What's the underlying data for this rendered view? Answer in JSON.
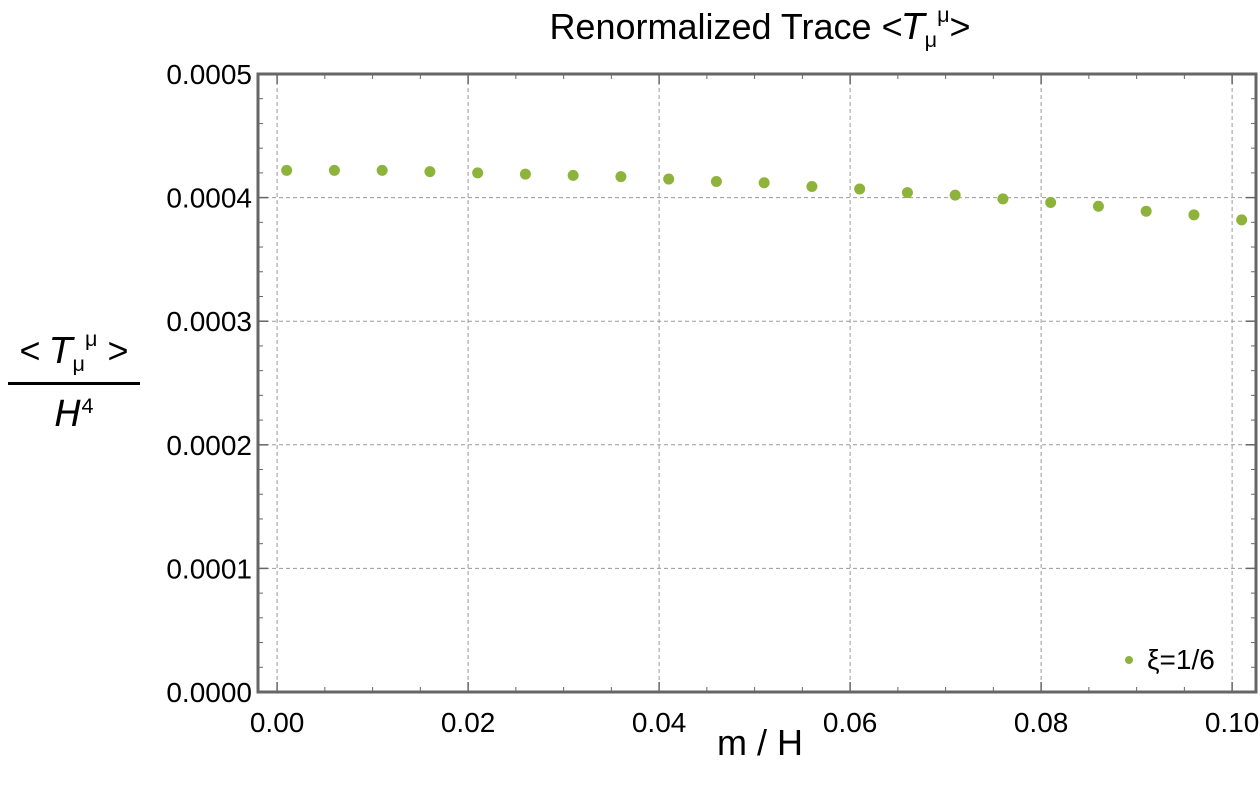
{
  "chart_data": {
    "type": "scatter",
    "title": {
      "prefix": "Renormalized Trace <",
      "sym": "T",
      "sub": "μ",
      "sup": "μ",
      "suffix": ">"
    },
    "xlabel": "m / H",
    "ylabel": {
      "num_left": "< ",
      "sym": "T",
      "sub": "μ",
      "sup": "μ",
      "num_right": " >",
      "den_sym": "H",
      "den_sup": "4"
    },
    "xlim": [
      -0.002,
      0.1025
    ],
    "ylim": [
      0.0,
      0.0005
    ],
    "xticks": [
      0.0,
      0.02,
      0.04,
      0.06,
      0.08,
      0.1
    ],
    "xtick_labels": [
      "0.00",
      "0.02",
      "0.04",
      "0.06",
      "0.08",
      "0.10"
    ],
    "yticks": [
      0.0,
      0.0001,
      0.0002,
      0.0003,
      0.0004,
      0.0005
    ],
    "ytick_labels": [
      "0.0000",
      "0.0001",
      "0.0002",
      "0.0003",
      "0.0004",
      "0.0005"
    ],
    "grid": true,
    "legend_position": "bottom-right",
    "series": [
      {
        "name": "ξ=1/6",
        "color": "#8db33a",
        "x": [
          0.001,
          0.006,
          0.011,
          0.016,
          0.021,
          0.026,
          0.031,
          0.036,
          0.041,
          0.046,
          0.051,
          0.056,
          0.061,
          0.066,
          0.071,
          0.076,
          0.081,
          0.086,
          0.091,
          0.096,
          0.101
        ],
        "y": [
          0.000422,
          0.000422,
          0.000422,
          0.000421,
          0.00042,
          0.000419,
          0.000418,
          0.000417,
          0.000415,
          0.000413,
          0.000412,
          0.000409,
          0.000407,
          0.000404,
          0.000402,
          0.000399,
          0.000396,
          0.000393,
          0.000389,
          0.000386,
          0.000382
        ]
      }
    ]
  }
}
